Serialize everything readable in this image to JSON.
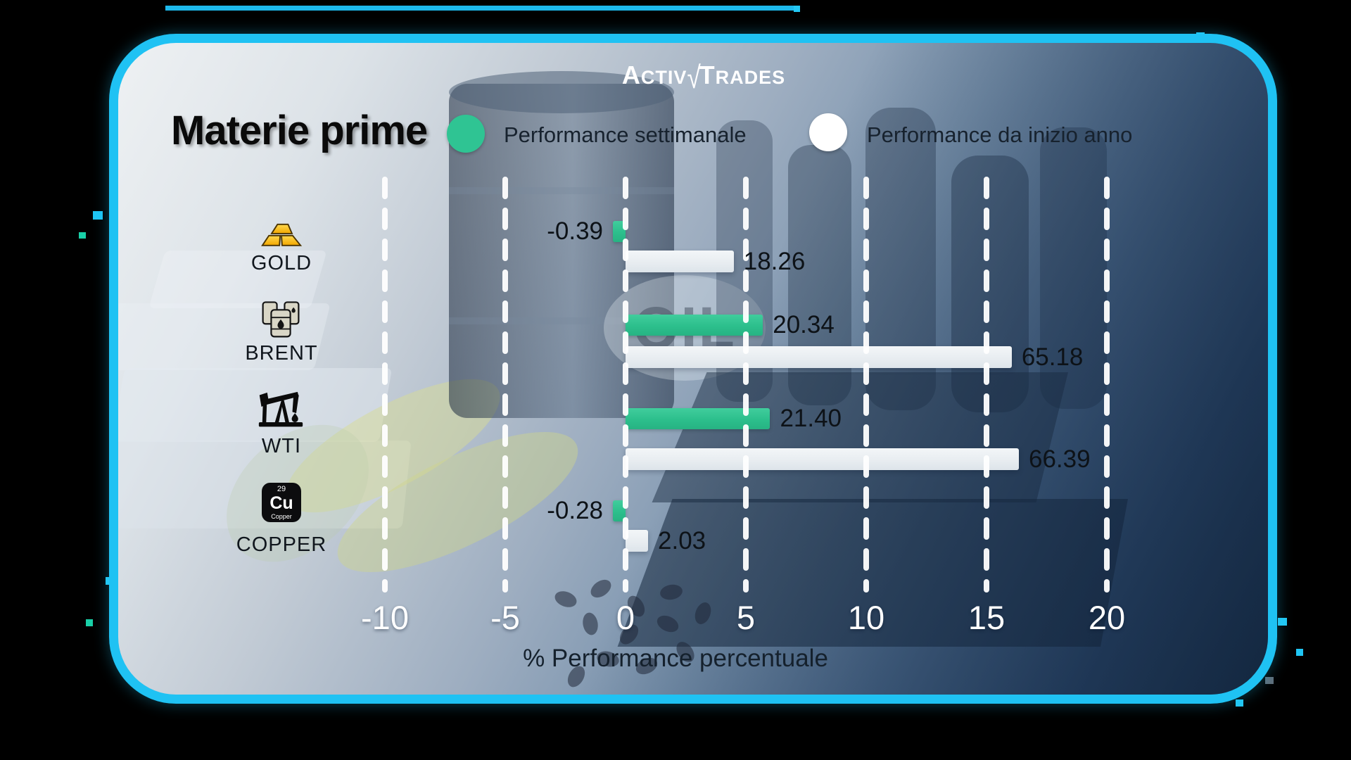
{
  "brand": {
    "name": "ActivTrades",
    "part1_initial": "A",
    "part1_rest": "CTIV",
    "check_mark": "√",
    "part2_initial": "T",
    "part2_rest": "RADES"
  },
  "title": "Materie prime",
  "legend": {
    "weekly": {
      "label": "Performance settimanale",
      "color": "#2fc493"
    },
    "ytd": {
      "label": "Performance da inizio anno",
      "color": "#ffffff"
    }
  },
  "chart_data": {
    "type": "bar",
    "orientation": "horizontal",
    "title": "Materie prime",
    "categories": [
      "GOLD",
      "BRENT",
      "WTI",
      "COPPER"
    ],
    "series": [
      {
        "name": "Performance settimanale",
        "color": "#2fc493",
        "values": [
          -0.39,
          20.34,
          21.4,
          -0.28
        ],
        "labels": [
          "-0.39",
          "20.34",
          "21.40",
          "-0.28"
        ]
      },
      {
        "name": "Performance da inizio anno",
        "color": "#edf1f4",
        "values": [
          18.26,
          65.18,
          66.39,
          2.03
        ],
        "labels": [
          "18.26",
          "65.18",
          "66.39",
          "2.03"
        ]
      }
    ],
    "xlabel": "% Performance percentuale",
    "x_ticks": [
      -10,
      -5,
      0,
      5,
      10,
      15,
      20
    ],
    "xlim": [
      -12.5,
      22.5
    ],
    "grid": "dashed-vertical-white",
    "legend_position": "top"
  },
  "icons": {
    "gold": "gold-ingots-icon",
    "brent": "oil-barrels-icon",
    "wti": "oil-pumpjack-icon",
    "copper": {
      "name": "copper-element-icon",
      "number": "29",
      "symbol": "Cu",
      "caption": "Copper"
    }
  },
  "watermark": "OIL"
}
